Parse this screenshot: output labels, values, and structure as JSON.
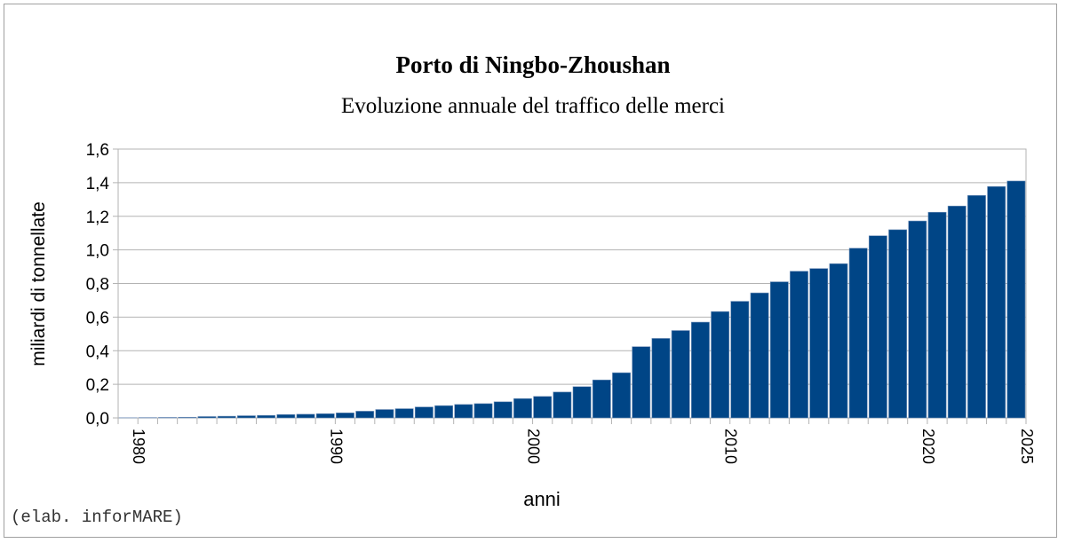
{
  "chart_data": {
    "type": "bar",
    "title": "Porto di Ningbo-Zhoushan",
    "subtitle": "Evoluzione annuale del traffico delle merci",
    "xlabel": "anni",
    "ylabel": "miliardi di tonnellate",
    "credit": "(elab. inforMARE)",
    "ylim": [
      0,
      1.6
    ],
    "yticks": [
      "0,0",
      "0,2",
      "0,4",
      "0,6",
      "0,8",
      "1,0",
      "1,2",
      "1,4",
      "1,6"
    ],
    "xtick_labels": [
      "1980",
      "1990",
      "2000",
      "2010",
      "2020",
      "2025"
    ],
    "grid": true,
    "bar_color": "#004586",
    "categories": [
      1980,
      1981,
      1982,
      1983,
      1984,
      1985,
      1986,
      1987,
      1988,
      1989,
      1990,
      1991,
      1992,
      1993,
      1994,
      1995,
      1996,
      1997,
      1998,
      1999,
      2000,
      2001,
      2002,
      2003,
      2004,
      2005,
      2006,
      2007,
      2008,
      2009,
      2010,
      2011,
      2012,
      2013,
      2014,
      2015,
      2016,
      2017,
      2018,
      2019,
      2020,
      2021,
      2022,
      2023,
      2024,
      2025
    ],
    "values": [
      0.001,
      0.002,
      0.003,
      0.004,
      0.008,
      0.01,
      0.013,
      0.015,
      0.02,
      0.022,
      0.025,
      0.03,
      0.04,
      0.05,
      0.055,
      0.065,
      0.073,
      0.08,
      0.085,
      0.096,
      0.115,
      0.128,
      0.154,
      0.186,
      0.226,
      0.269,
      0.424,
      0.473,
      0.52,
      0.57,
      0.633,
      0.694,
      0.744,
      0.81,
      0.873,
      0.889,
      0.918,
      1.01,
      1.084,
      1.12,
      1.172,
      1.224,
      1.261,
      1.324,
      1.377,
      1.41
    ]
  }
}
